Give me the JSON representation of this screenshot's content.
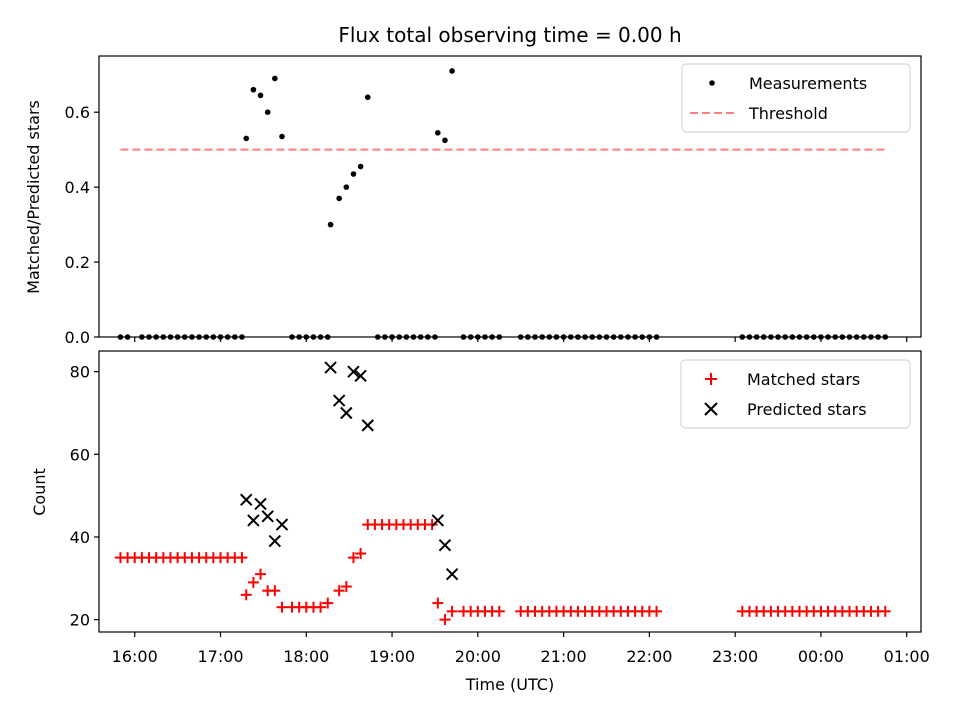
{
  "chart_data": [
    {
      "type": "scatter",
      "title": "Flux total observing time = 0.00 h",
      "xlabel": "",
      "ylabel": "Matched/Predicted stars",
      "ylim": [
        0,
        0.75
      ],
      "xlim": [
        "15:35",
        "01:10"
      ],
      "yticks": [
        0.0,
        0.2,
        0.4,
        0.6
      ],
      "ytick_labels": [
        "0.0",
        "0.2",
        "0.4",
        "0.6"
      ],
      "grid": false,
      "legend_position": "top-right",
      "series": [
        {
          "name": "Measurements",
          "marker": "dot",
          "color": "#000000",
          "points": [
            [
              "15:50",
              0
            ],
            [
              "15:55",
              0
            ],
            [
              "16:05",
              0
            ],
            [
              "16:10",
              0
            ],
            [
              "16:15",
              0
            ],
            [
              "16:20",
              0
            ],
            [
              "16:25",
              0
            ],
            [
              "16:30",
              0
            ],
            [
              "16:35",
              0
            ],
            [
              "16:40",
              0
            ],
            [
              "16:45",
              0
            ],
            [
              "16:50",
              0
            ],
            [
              "16:55",
              0
            ],
            [
              "17:00",
              0
            ],
            [
              "17:05",
              0
            ],
            [
              "17:10",
              0
            ],
            [
              "17:15",
              0
            ],
            [
              "17:18",
              0.53
            ],
            [
              "17:23",
              0.66
            ],
            [
              "17:28",
              0.645
            ],
            [
              "17:33",
              0.6
            ],
            [
              "17:38",
              0.69
            ],
            [
              "17:43",
              0.535
            ],
            [
              "17:50",
              0
            ],
            [
              "17:55",
              0
            ],
            [
              "18:00",
              0
            ],
            [
              "18:05",
              0
            ],
            [
              "18:10",
              0
            ],
            [
              "18:15",
              0
            ],
            [
              "18:17",
              0.3
            ],
            [
              "18:23",
              0.37
            ],
            [
              "18:28",
              0.4
            ],
            [
              "18:33",
              0.435
            ],
            [
              "18:38",
              0.455
            ],
            [
              "18:43",
              0.64
            ],
            [
              "18:50",
              0
            ],
            [
              "18:55",
              0
            ],
            [
              "19:00",
              0
            ],
            [
              "19:05",
              0
            ],
            [
              "19:10",
              0
            ],
            [
              "19:15",
              0
            ],
            [
              "19:20",
              0
            ],
            [
              "19:25",
              0
            ],
            [
              "19:30",
              0
            ],
            [
              "19:32",
              0.545
            ],
            [
              "19:37",
              0.525
            ],
            [
              "19:42",
              0.71
            ],
            [
              "19:50",
              0
            ],
            [
              "19:55",
              0
            ],
            [
              "20:00",
              0
            ],
            [
              "20:05",
              0
            ],
            [
              "20:10",
              0
            ],
            [
              "20:15",
              0
            ],
            [
              "20:30",
              0
            ],
            [
              "20:35",
              0
            ],
            [
              "20:40",
              0
            ],
            [
              "20:45",
              0
            ],
            [
              "20:50",
              0
            ],
            [
              "20:55",
              0
            ],
            [
              "21:00",
              0
            ],
            [
              "21:05",
              0
            ],
            [
              "21:10",
              0
            ],
            [
              "21:15",
              0
            ],
            [
              "21:20",
              0
            ],
            [
              "21:25",
              0
            ],
            [
              "21:30",
              0
            ],
            [
              "21:35",
              0
            ],
            [
              "21:40",
              0
            ],
            [
              "21:45",
              0
            ],
            [
              "21:50",
              0
            ],
            [
              "21:55",
              0
            ],
            [
              "22:00",
              0
            ],
            [
              "22:05",
              0
            ],
            [
              "23:05",
              0
            ],
            [
              "23:10",
              0
            ],
            [
              "23:15",
              0
            ],
            [
              "23:20",
              0
            ],
            [
              "23:25",
              0
            ],
            [
              "23:30",
              0
            ],
            [
              "23:35",
              0
            ],
            [
              "23:40",
              0
            ],
            [
              "23:45",
              0
            ],
            [
              "23:50",
              0
            ],
            [
              "23:55",
              0
            ],
            [
              "00:00",
              0
            ],
            [
              "00:05",
              0
            ],
            [
              "00:10",
              0
            ],
            [
              "00:15",
              0
            ],
            [
              "00:20",
              0
            ],
            [
              "00:25",
              0
            ],
            [
              "00:30",
              0
            ],
            [
              "00:35",
              0
            ],
            [
              "00:40",
              0
            ],
            [
              "00:45",
              0
            ]
          ]
        },
        {
          "name": "Threshold",
          "style": "dashed-line",
          "color": "#ff7f7f",
          "points": [
            [
              "15:50",
              0.5
            ],
            [
              "00:45",
              0.5
            ]
          ]
        }
      ]
    },
    {
      "type": "scatter",
      "title": "",
      "xlabel": "Time (UTC)",
      "ylabel": "Count",
      "ylim": [
        17,
        85
      ],
      "xlim": [
        "15:35",
        "01:10"
      ],
      "yticks": [
        20,
        40,
        60,
        80
      ],
      "ytick_labels": [
        "20",
        "40",
        "60",
        "80"
      ],
      "xticks": [
        "16:00",
        "17:00",
        "18:00",
        "19:00",
        "20:00",
        "21:00",
        "22:00",
        "23:00",
        "00:00",
        "01:00"
      ],
      "xtick_labels": [
        "16:00",
        "17:00",
        "18:00",
        "19:00",
        "20:00",
        "21:00",
        "22:00",
        "23:00",
        "00:00",
        "01:00"
      ],
      "grid": false,
      "legend_position": "top-right",
      "series": [
        {
          "name": "Matched stars",
          "marker": "plus",
          "color": "#ff0000",
          "points": [
            [
              "15:50",
              35
            ],
            [
              "15:55",
              35
            ],
            [
              "16:00",
              35
            ],
            [
              "16:05",
              35
            ],
            [
              "16:10",
              35
            ],
            [
              "16:15",
              35
            ],
            [
              "16:20",
              35
            ],
            [
              "16:25",
              35
            ],
            [
              "16:30",
              35
            ],
            [
              "16:35",
              35
            ],
            [
              "16:40",
              35
            ],
            [
              "16:45",
              35
            ],
            [
              "16:50",
              35
            ],
            [
              "16:55",
              35
            ],
            [
              "17:00",
              35
            ],
            [
              "17:05",
              35
            ],
            [
              "17:10",
              35
            ],
            [
              "17:15",
              35
            ],
            [
              "17:18",
              26
            ],
            [
              "17:23",
              29
            ],
            [
              "17:28",
              31
            ],
            [
              "17:33",
              27
            ],
            [
              "17:38",
              27
            ],
            [
              "17:43",
              23
            ],
            [
              "17:50",
              23
            ],
            [
              "17:55",
              23
            ],
            [
              "18:00",
              23
            ],
            [
              "18:05",
              23
            ],
            [
              "18:10",
              23
            ],
            [
              "18:15",
              24
            ],
            [
              "18:23",
              27
            ],
            [
              "18:28",
              28
            ],
            [
              "18:33",
              35
            ],
            [
              "18:38",
              36
            ],
            [
              "18:43",
              43
            ],
            [
              "18:48",
              43
            ],
            [
              "18:53",
              43
            ],
            [
              "18:58",
              43
            ],
            [
              "19:03",
              43
            ],
            [
              "19:08",
              43
            ],
            [
              "19:13",
              43
            ],
            [
              "19:18",
              43
            ],
            [
              "19:23",
              43
            ],
            [
              "19:28",
              43
            ],
            [
              "19:32",
              24
            ],
            [
              "19:37",
              20
            ],
            [
              "19:42",
              22
            ],
            [
              "19:50",
              22
            ],
            [
              "19:55",
              22
            ],
            [
              "20:00",
              22
            ],
            [
              "20:05",
              22
            ],
            [
              "20:10",
              22
            ],
            [
              "20:15",
              22
            ],
            [
              "20:30",
              22
            ],
            [
              "20:35",
              22
            ],
            [
              "20:40",
              22
            ],
            [
              "20:45",
              22
            ],
            [
              "20:50",
              22
            ],
            [
              "20:55",
              22
            ],
            [
              "21:00",
              22
            ],
            [
              "21:05",
              22
            ],
            [
              "21:10",
              22
            ],
            [
              "21:15",
              22
            ],
            [
              "21:20",
              22
            ],
            [
              "21:25",
              22
            ],
            [
              "21:30",
              22
            ],
            [
              "21:35",
              22
            ],
            [
              "21:40",
              22
            ],
            [
              "21:45",
              22
            ],
            [
              "21:50",
              22
            ],
            [
              "21:55",
              22
            ],
            [
              "22:00",
              22
            ],
            [
              "22:05",
              22
            ],
            [
              "23:05",
              22
            ],
            [
              "23:10",
              22
            ],
            [
              "23:15",
              22
            ],
            [
              "23:20",
              22
            ],
            [
              "23:25",
              22
            ],
            [
              "23:30",
              22
            ],
            [
              "23:35",
              22
            ],
            [
              "23:40",
              22
            ],
            [
              "23:45",
              22
            ],
            [
              "23:50",
              22
            ],
            [
              "23:55",
              22
            ],
            [
              "00:00",
              22
            ],
            [
              "00:05",
              22
            ],
            [
              "00:10",
              22
            ],
            [
              "00:15",
              22
            ],
            [
              "00:20",
              22
            ],
            [
              "00:25",
              22
            ],
            [
              "00:30",
              22
            ],
            [
              "00:35",
              22
            ],
            [
              "00:40",
              22
            ],
            [
              "00:45",
              22
            ]
          ]
        },
        {
          "name": "Predicted stars",
          "marker": "x",
          "color": "#000000",
          "points": [
            [
              "17:18",
              49
            ],
            [
              "17:23",
              44
            ],
            [
              "17:28",
              48
            ],
            [
              "17:33",
              45
            ],
            [
              "17:38",
              39
            ],
            [
              "17:43",
              43
            ],
            [
              "18:17",
              81
            ],
            [
              "18:23",
              73
            ],
            [
              "18:28",
              70
            ],
            [
              "18:33",
              80
            ],
            [
              "18:38",
              79
            ],
            [
              "18:43",
              67
            ],
            [
              "19:32",
              44
            ],
            [
              "19:37",
              38
            ],
            [
              "19:42",
              31
            ]
          ]
        }
      ]
    }
  ]
}
